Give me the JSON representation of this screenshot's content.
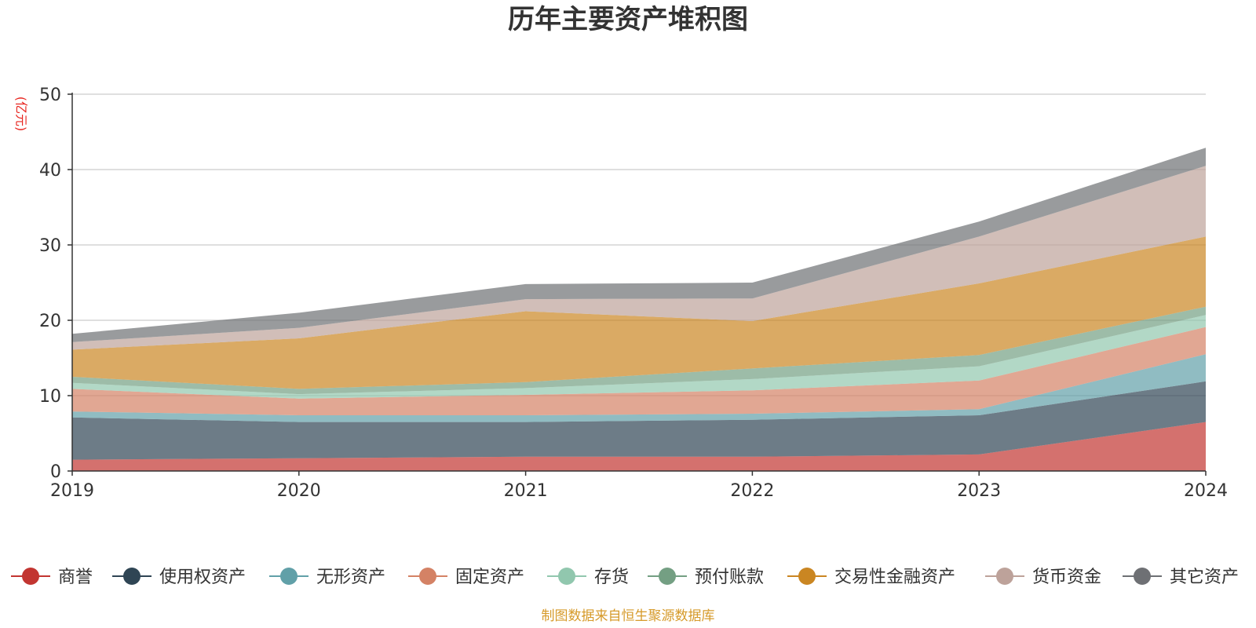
{
  "chart_data": {
    "type": "area",
    "title": "历年主要资产堆积图",
    "y_unit": "(亿元)",
    "x": [
      "2019",
      "2020",
      "2021",
      "2022",
      "2023",
      "2024"
    ],
    "ylim": [
      0,
      50
    ],
    "yticks": [
      "0",
      "10",
      "20",
      "30",
      "40",
      "50"
    ],
    "grid": true,
    "stacked": true,
    "legend_position": "bottom",
    "series": [
      {
        "name": "商誉",
        "color": "#c23531",
        "values": [
          1.5,
          1.7,
          1.9,
          1.9,
          2.2,
          6.5
        ]
      },
      {
        "name": "使用权资产",
        "color": "#2f4554",
        "values": [
          5.6,
          4.8,
          4.6,
          4.9,
          5.2,
          5.4
        ]
      },
      {
        "name": "无形资产",
        "color": "#61a0a8",
        "values": [
          0.8,
          0.9,
          0.9,
          0.8,
          0.8,
          3.6
        ]
      },
      {
        "name": "固定资产",
        "color": "#d48265",
        "values": [
          3.0,
          2.2,
          2.7,
          3.1,
          3.8,
          3.6
        ]
      },
      {
        "name": "存货",
        "color": "#91c7ae",
        "values": [
          0.8,
          0.6,
          0.9,
          1.5,
          1.9,
          1.6
        ]
      },
      {
        "name": "预付账款",
        "color": "#749f83",
        "values": [
          0.8,
          0.7,
          0.8,
          1.4,
          1.5,
          1.1
        ]
      },
      {
        "name": "交易性金融资产",
        "color": "#ca8622",
        "values": [
          3.6,
          6.7,
          9.4,
          6.3,
          9.5,
          9.3
        ]
      },
      {
        "name": "货币资金",
        "color": "#bda29a",
        "values": [
          1.0,
          1.4,
          1.6,
          3.0,
          6.2,
          9.4
        ]
      },
      {
        "name": "其它资产",
        "color": "#6e7074",
        "values": [
          1.1,
          2.0,
          2.0,
          2.1,
          2.0,
          2.4
        ]
      }
    ]
  },
  "footer": {
    "source": "制图数据来自恒生聚源数据库"
  }
}
